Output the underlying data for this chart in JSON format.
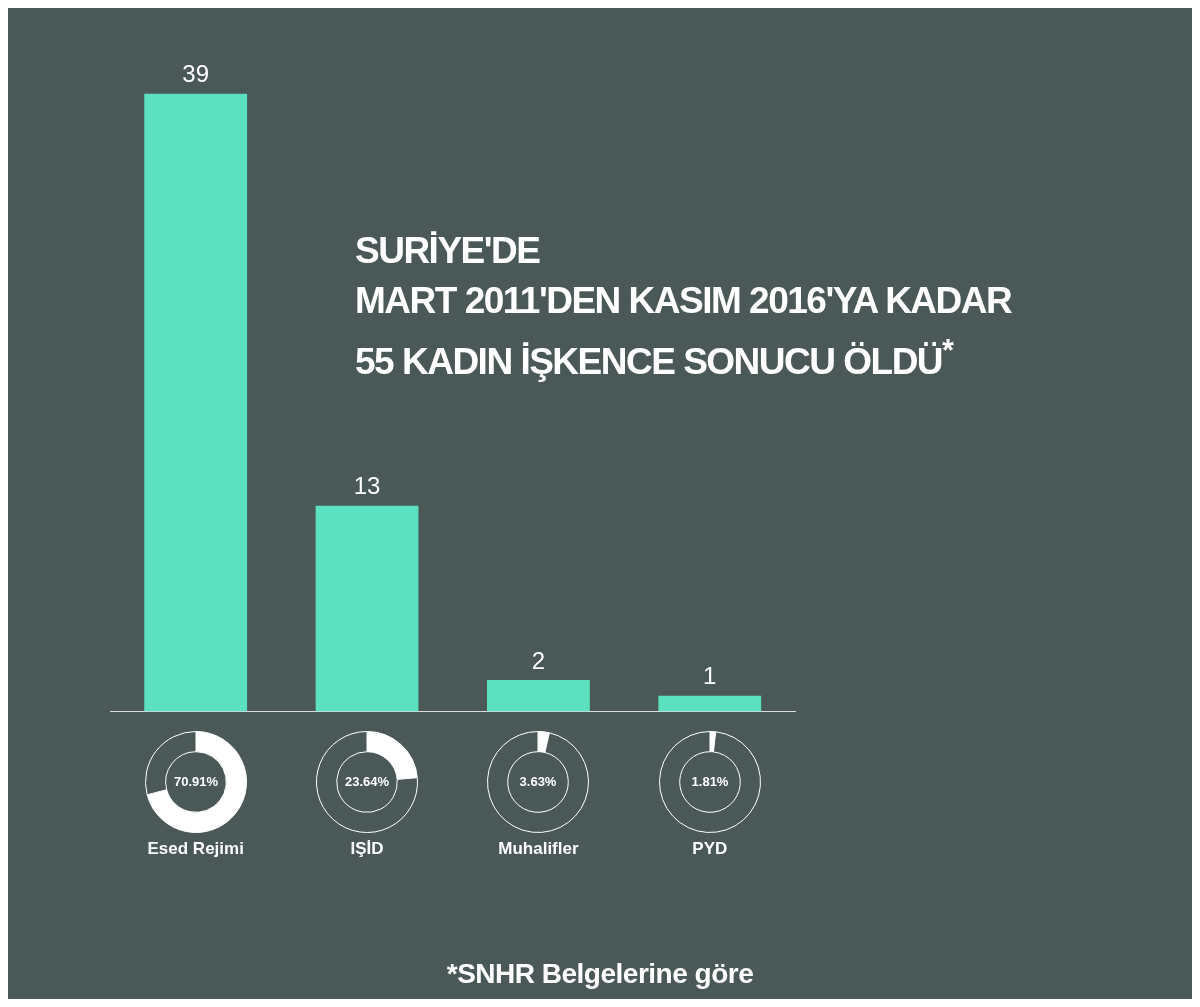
{
  "chart_data": [
    {
      "type": "bar",
      "categories": [
        "Esed Rejimi",
        "IŞİD",
        "Muhalifler",
        "PYD"
      ],
      "values": [
        39,
        13,
        2,
        1
      ],
      "color": "#5ce1c0",
      "data_labels": true,
      "title": "SURİYE'DE\nMART 2011'DEN KASIM 2016'YA KADAR\n55 KADIN İŞKENCE SONUCU ÖLDÜ$^{*}$",
      "annotations": [
        "*SNHR Belgelerine göre"
      ]
    },
    {
      "type": "donut",
      "categories": [
        null,
        null
      ],
      "values": [
        70.91,
        29.09
      ],
      "colors": [
        "#ffffff",
        "#4a5858"
      ],
      "value_labels": [
        "70.91%",
        null
      ]
    },
    {
      "type": "donut",
      "categories": [
        null,
        null
      ],
      "values": [
        23.64,
        76.36
      ],
      "colors": [
        "#ffffff",
        "#4a5858"
      ],
      "value_labels": [
        "23.64%",
        null
      ]
    },
    {
      "type": "donut",
      "categories": [
        null,
        null
      ],
      "values": [
        3.63,
        96.37
      ],
      "colors": [
        "#ffffff",
        "#4a5858"
      ],
      "value_labels": [
        "3.63%",
        null
      ]
    },
    {
      "type": "donut",
      "categories": [
        null,
        null
      ],
      "values": [
        1.81,
        98.19
      ],
      "colors": [
        "#ffffff",
        "#4a5858"
      ],
      "value_labels": [
        "1.81%",
        null
      ]
    }
  ]
}
